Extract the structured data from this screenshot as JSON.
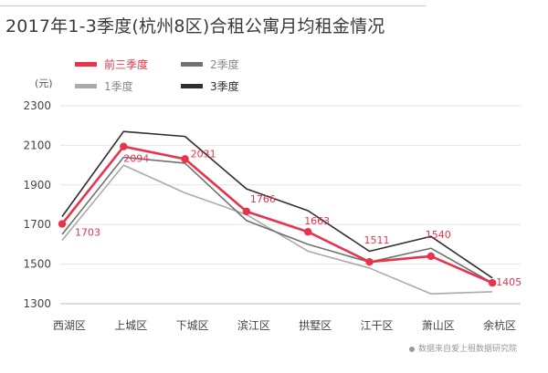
{
  "title": "2017年1-3季度(杭州8区)合租公寓月均租金情况",
  "source": "数据来自爱上租数据研究院",
  "chart_data": {
    "type": "line",
    "categories": [
      "西湖区",
      "上城区",
      "下城区",
      "滨江区",
      "拱墅区",
      "江干区",
      "萧山区",
      "余杭区"
    ],
    "ylabel": "(元)",
    "ylim": [
      1300,
      2300
    ],
    "yticks": [
      1300,
      1500,
      1700,
      1900,
      2100,
      2300
    ],
    "grid": true,
    "legend_position": "top-left",
    "series": [
      {
        "name": "前三季度",
        "color": "#e8334a",
        "values": [
          1703,
          2094,
          2031,
          1766,
          1663,
          1511,
          1540,
          1405
        ],
        "labels": [
          "1703",
          "2094",
          "2031",
          "1766",
          "1663",
          "1511",
          "1540",
          "1405"
        ]
      },
      {
        "name": "1季度",
        "color": "#aaaaaa",
        "values": [
          1620,
          2000,
          1860,
          1750,
          1565,
          1480,
          1350,
          1360
        ]
      },
      {
        "name": "2季度",
        "color": "#707070",
        "values": [
          1650,
          2040,
          2010,
          1720,
          1600,
          1510,
          1580,
          1405
        ]
      },
      {
        "name": "3季度",
        "color": "#2e2e2e",
        "values": [
          1740,
          2170,
          2145,
          1880,
          1770,
          1565,
          1640,
          1430
        ]
      }
    ]
  }
}
